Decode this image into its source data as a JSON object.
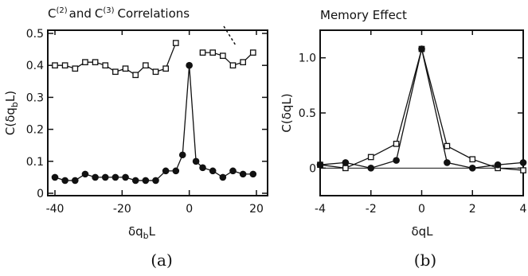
{
  "chart_data": [
    {
      "type": "line",
      "title": "C(2) and C(3) Correlations",
      "title_parts": {
        "c": "C",
        "sup2": "(2)",
        "and": "and",
        "sup3": "(3)",
        "rest": "Correlations"
      },
      "ylabel": "C(δq_b L)",
      "ylabel_parts": {
        "pre": "C(δq",
        "sub": "b",
        "post": "L)"
      },
      "xlabel": "δq_b L",
      "xlabel_parts": {
        "pre": "δq",
        "sub": "b",
        "post": "L"
      },
      "xlim": [
        -40,
        20
      ],
      "ylim": [
        0,
        0.5
      ],
      "xticks": [
        "-40",
        "-20",
        "0",
        "20"
      ],
      "yticks": [
        "0",
        "0.1",
        "0.2",
        "0.3",
        "0.4",
        "0.5"
      ],
      "panel_label": "(a)",
      "series": [
        {
          "marker": "open-square",
          "x": [
            -40,
            -37,
            -34,
            -31,
            -28,
            -25,
            -22,
            -19,
            -16,
            -13,
            -10,
            -7,
            -4,
            4,
            7,
            10,
            13,
            16,
            19
          ],
          "values": [
            0.4,
            0.4,
            0.39,
            0.41,
            0.41,
            0.4,
            0.38,
            0.39,
            0.37,
            0.4,
            0.38,
            0.39,
            0.47,
            0.44,
            0.44,
            0.43,
            0.4,
            0.41,
            0.44
          ]
        },
        {
          "marker": "filled-circle",
          "x": [
            -40,
            -37,
            -34,
            -31,
            -28,
            -25,
            -22,
            -19,
            -16,
            -13,
            -10,
            -7,
            -4,
            -2,
            0,
            2,
            4,
            7,
            10,
            13,
            16,
            19
          ],
          "values": [
            0.05,
            0.04,
            0.04,
            0.06,
            0.05,
            0.05,
            0.05,
            0.05,
            0.04,
            0.04,
            0.04,
            0.07,
            0.07,
            0.12,
            0.4,
            0.1,
            0.08,
            0.07,
            0.05,
            0.07,
            0.06,
            0.06
          ]
        }
      ]
    },
    {
      "type": "line",
      "title": "Memory Effect",
      "ylabel": "C(δqL)",
      "xlabel": "δqL",
      "xlim": [
        -4,
        4
      ],
      "ylim": [
        -0.25,
        1.25
      ],
      "xticks": [
        "-4",
        "-2",
        "0",
        "2",
        "4"
      ],
      "yticks": [
        "0",
        "0.5",
        "1.0"
      ],
      "panel_label": "(b)",
      "series": [
        {
          "marker": "open-square",
          "x": [
            -4,
            -3,
            -2,
            -1,
            0,
            1,
            2,
            3,
            4
          ],
          "values": [
            0.03,
            0.0,
            0.1,
            0.22,
            1.08,
            0.2,
            0.08,
            0.0,
            -0.02
          ]
        },
        {
          "marker": "filled-circle",
          "x": [
            -4,
            -3,
            -2,
            -1,
            0,
            1,
            2,
            3,
            4
          ],
          "values": [
            0.03,
            0.05,
            0.0,
            0.07,
            1.08,
            0.05,
            0.0,
            0.03,
            0.05
          ]
        }
      ]
    }
  ]
}
